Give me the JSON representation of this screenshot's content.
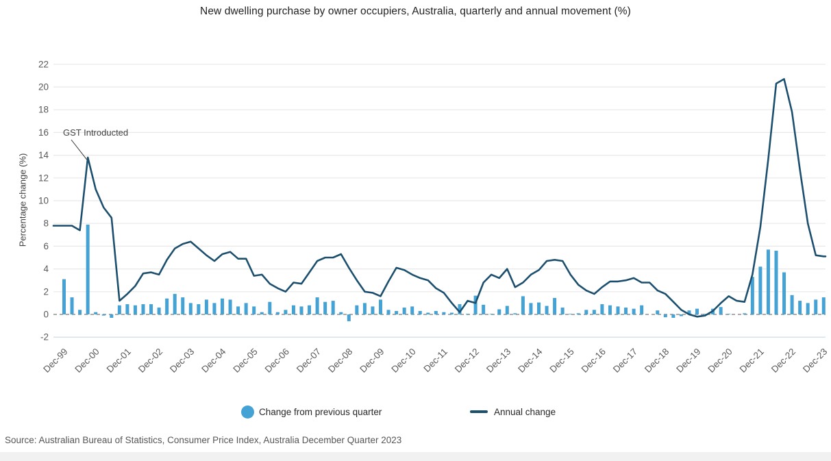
{
  "title": "New dwelling purchase by owner occupiers, Australia, quarterly and annual movement (%)",
  "source": "Source: Australian Bureau of Statistics, Consumer Price Index, Australia December Quarter 2023",
  "legend": {
    "quarterly_label": "Change from previous quarter",
    "annual_label": "Annual change"
  },
  "colors": {
    "bar": "#45a2d5",
    "line": "#1c4f6e",
    "grid": "#e8e8e8",
    "grid_bottom": "#c9d9e8",
    "zero_dash": "#ababab",
    "axis_text": "#595959",
    "annotation_text": "#404040"
  },
  "chart_data": {
    "type": "combo",
    "title": "New dwelling purchase by owner occupiers, Australia, quarterly and annual movement (%)",
    "xlabel": "",
    "ylabel": "Percentage change (%)",
    "ylim": [
      -2,
      22
    ],
    "ytick_step": 2,
    "grid": "horizontal",
    "legend_position": "bottom-center",
    "x_tick_labels": [
      "Dec-99",
      "Dec-00",
      "Dec-01",
      "Dec-02",
      "Dec-03",
      "Dec-04",
      "Dec-05",
      "Dec-06",
      "Dec-07",
      "Dec-08",
      "Dec-09",
      "Dec-10",
      "Dec-11",
      "Dec-12",
      "Dec-13",
      "Dec-14",
      "Dec-15",
      "Dec-16",
      "Dec-17",
      "Dec-18",
      "Dec-19",
      "Dec-20",
      "Dec-21",
      "Dec-22",
      "Dec-23"
    ],
    "categories": [
      "Dec-99",
      "Mar-00",
      "Jun-00",
      "Sep-00",
      "Dec-00",
      "Mar-01",
      "Jun-01",
      "Sep-01",
      "Dec-01",
      "Mar-02",
      "Jun-02",
      "Sep-02",
      "Dec-02",
      "Mar-03",
      "Jun-03",
      "Sep-03",
      "Dec-03",
      "Mar-04",
      "Jun-04",
      "Sep-04",
      "Dec-04",
      "Mar-05",
      "Jun-05",
      "Sep-05",
      "Dec-05",
      "Mar-06",
      "Jun-06",
      "Sep-06",
      "Dec-06",
      "Mar-07",
      "Jun-07",
      "Sep-07",
      "Dec-07",
      "Mar-08",
      "Jun-08",
      "Sep-08",
      "Dec-08",
      "Mar-09",
      "Jun-09",
      "Sep-09",
      "Dec-09",
      "Mar-10",
      "Jun-10",
      "Sep-10",
      "Dec-10",
      "Mar-11",
      "Jun-11",
      "Sep-11",
      "Dec-11",
      "Mar-12",
      "Jun-12",
      "Sep-12",
      "Dec-12",
      "Mar-13",
      "Jun-13",
      "Sep-13",
      "Dec-13",
      "Mar-14",
      "Jun-14",
      "Sep-14",
      "Dec-14",
      "Mar-15",
      "Jun-15",
      "Sep-15",
      "Dec-15",
      "Mar-16",
      "Jun-16",
      "Sep-16",
      "Dec-16",
      "Mar-17",
      "Jun-17",
      "Sep-17",
      "Dec-17",
      "Mar-18",
      "Jun-18",
      "Sep-18",
      "Dec-18",
      "Mar-19",
      "Jun-19",
      "Sep-19",
      "Dec-19",
      "Mar-20",
      "Jun-20",
      "Sep-20",
      "Dec-20",
      "Mar-21",
      "Jun-21",
      "Sep-21",
      "Dec-21",
      "Mar-22",
      "Jun-22",
      "Sep-22",
      "Dec-22",
      "Mar-23",
      "Jun-23",
      "Sep-23",
      "Dec-23"
    ],
    "series": [
      {
        "name": "Change from previous quarter",
        "type": "bar",
        "color": "#45a2d5",
        "values": [
          3.1,
          1.5,
          0.4,
          7.9,
          0.2,
          -0.1,
          -0.3,
          0.8,
          0.9,
          0.8,
          0.9,
          0.9,
          0.6,
          1.4,
          1.8,
          1.5,
          1.0,
          0.9,
          1.3,
          1.0,
          1.4,
          1.3,
          0.7,
          1.0,
          0.7,
          0.2,
          1.1,
          0.2,
          0.4,
          0.8,
          0.7,
          0.8,
          1.5,
          1.1,
          1.2,
          0.2,
          -0.6,
          0.8,
          1.0,
          0.7,
          1.3,
          0.4,
          0.3,
          0.6,
          0.7,
          0.3,
          0.15,
          0.3,
          0.2,
          0.15,
          0.9,
          0.05,
          1.65,
          0.85,
          0.05,
          0.45,
          0.75,
          0.1,
          1.6,
          1.0,
          1.05,
          0.75,
          1.45,
          0.6,
          0.05,
          0.1,
          0.4,
          0.4,
          0.9,
          0.8,
          0.7,
          0.6,
          0.5,
          0.8,
          0.0,
          0.35,
          -0.25,
          -0.3,
          -0.15,
          0.35,
          0.5,
          0.05,
          0.5,
          0.65,
          0.05,
          0.0,
          0.1,
          3.3,
          4.2,
          5.7,
          5.6,
          3.7,
          1.7,
          1.2,
          1.0,
          1.3,
          1.5
        ]
      },
      {
        "name": "Annual change",
        "type": "line",
        "color": "#1c4f6e",
        "values": [
          7.8,
          7.8,
          7.4,
          13.8,
          11.0,
          9.4,
          8.5,
          1.2,
          1.8,
          2.5,
          3.6,
          3.7,
          3.5,
          4.8,
          5.8,
          6.2,
          6.4,
          5.8,
          5.2,
          4.7,
          5.3,
          5.5,
          4.9,
          4.9,
          3.4,
          3.5,
          2.7,
          2.3,
          2.0,
          2.8,
          2.7,
          3.7,
          4.7,
          5.0,
          5.0,
          5.3,
          4.1,
          3.0,
          2.0,
          1.9,
          1.6,
          2.9,
          4.1,
          3.9,
          3.5,
          3.2,
          3.0,
          2.3,
          1.9,
          1.0,
          0.2,
          1.2,
          1.0,
          2.8,
          3.5,
          3.2,
          4.0,
          2.4,
          2.8,
          3.5,
          3.9,
          4.7,
          4.8,
          4.7,
          3.5,
          2.6,
          2.1,
          1.8,
          2.4,
          2.9,
          2.9,
          3.0,
          3.2,
          2.8,
          2.8,
          2.1,
          1.8,
          1.1,
          0.4,
          0.0,
          -0.2,
          -0.1,
          0.3,
          1.0,
          1.6,
          1.2,
          1.1,
          3.5,
          7.7,
          13.7,
          20.3,
          20.7,
          17.8,
          12.7,
          8.0,
          5.2,
          5.1
        ]
      }
    ],
    "annotation": {
      "text": "GST Introducted",
      "target_category": "Sep-00",
      "target_value": 13.8
    }
  }
}
